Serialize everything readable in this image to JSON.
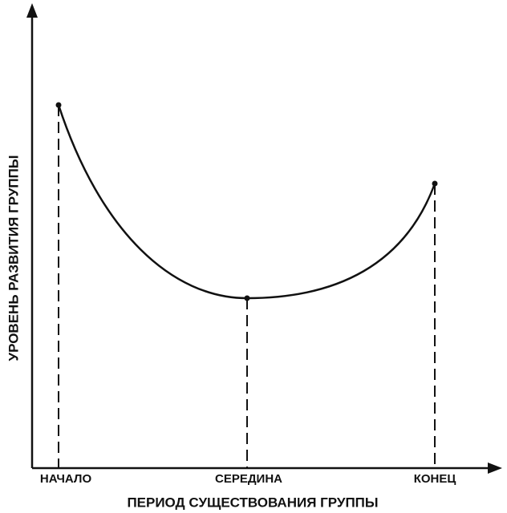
{
  "y_axis": {
    "label": "УРОВЕНЬ РАЗВИТИЯ ГРУППЫ"
  },
  "x_axis": {
    "label": "ПЕРИОД СУЩЕСТВОВАНИЯ ГРУППЫ",
    "stages": [
      "НАЧАЛО",
      "СЕРЕДИНА",
      "КОНЕЦ"
    ]
  }
}
